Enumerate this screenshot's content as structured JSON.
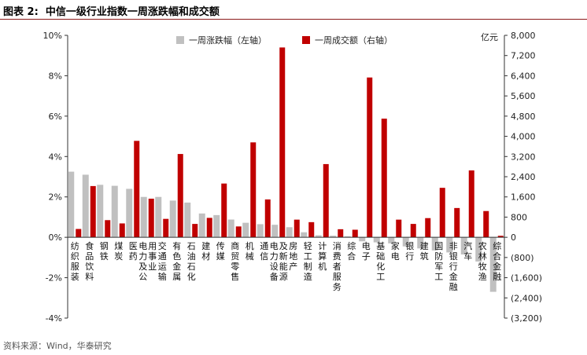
{
  "header": {
    "title": "图表 2:  中信一级行业指数一周涨跌幅和成交额"
  },
  "footer": {
    "source": "资料来源：Wind，华泰研究"
  },
  "chart_data": {
    "type": "bar",
    "categories": [
      "纺织服装",
      "食品饮料",
      "钢铁",
      "煤炭",
      "医药",
      "电力及公用事业",
      "交通运输",
      "有色金属",
      "石油石化",
      "建材",
      "传媒",
      "商贸零售",
      "机械",
      "通信",
      "电力设备及新能源",
      "房地产",
      "轻工制造",
      "计算机",
      "消费者服务",
      "综合",
      "电子",
      "基础化工",
      "家电",
      "银行",
      "建筑",
      "国防军工",
      "非银行金融",
      "汽车",
      "农林牧渔",
      "综合金融"
    ],
    "series": [
      {
        "name": "一周涨跌幅（左轴）",
        "axis": "left",
        "color": "#C0C0C0",
        "values": [
          3.25,
          3.1,
          2.6,
          2.55,
          2.4,
          2.0,
          2.0,
          1.82,
          1.72,
          1.18,
          1.1,
          0.88,
          0.72,
          0.65,
          0.62,
          0.5,
          0.25,
          0.1,
          0.08,
          0.05,
          -0.2,
          -0.25,
          -0.3,
          -0.45,
          -0.55,
          -0.65,
          -0.75,
          -0.85,
          -1.2,
          -2.7
        ]
      },
      {
        "name": "一周成交额（右轴）",
        "axis": "right",
        "color": "#C00000",
        "values": [
          330,
          2030,
          680,
          550,
          3820,
          1530,
          730,
          3300,
          530,
          770,
          2130,
          430,
          3760,
          1500,
          7520,
          700,
          600,
          2900,
          320,
          300,
          6330,
          4700,
          700,
          530,
          760,
          1960,
          1160,
          2650,
          1040,
          60
        ]
      }
    ],
    "left_axis": {
      "label": "",
      "ticks": [
        "10%",
        "8%",
        "6%",
        "4%",
        "2%",
        "0%",
        "-2%",
        "-4%"
      ],
      "ylim": [
        -4,
        10
      ]
    },
    "right_axis": {
      "label": "亿元",
      "ticks": [
        "8,000",
        "7,200",
        "6,400",
        "5,600",
        "4,800",
        "4,000",
        "3,200",
        "2,400",
        "1,600",
        "800",
        "0",
        "(800)",
        "(1,600)",
        "(2,400)",
        "(3,200)"
      ],
      "ylim": [
        -3200,
        8000
      ]
    },
    "legend": "top-center",
    "grid": false
  }
}
